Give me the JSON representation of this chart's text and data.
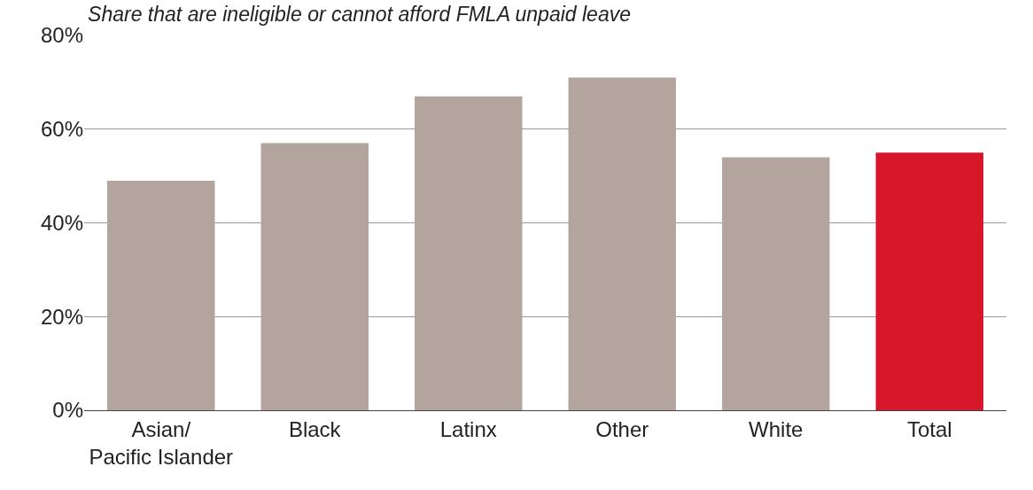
{
  "chart_data": {
    "type": "bar",
    "title": "Share that are ineligible or cannot afford FMLA unpaid leave",
    "categories": [
      "Asian/\nPacific Islander",
      "Black",
      "Latinx",
      "Other",
      "White",
      "Total"
    ],
    "values": [
      49,
      57,
      67,
      71,
      54,
      55
    ],
    "colors": [
      "#b3a59d",
      "#b3a59d",
      "#b3a59d",
      "#b3a59d",
      "#b3a59d",
      "#d7182a"
    ],
    "ylim": [
      0,
      80
    ],
    "yticks": [
      {
        "value": 0,
        "label": "0%"
      },
      {
        "value": 20,
        "label": "20%"
      },
      {
        "value": 40,
        "label": "40%"
      },
      {
        "value": 60,
        "label": "60%"
      },
      {
        "value": 80,
        "label": "80%"
      }
    ],
    "grid": "y",
    "legend": false
  }
}
